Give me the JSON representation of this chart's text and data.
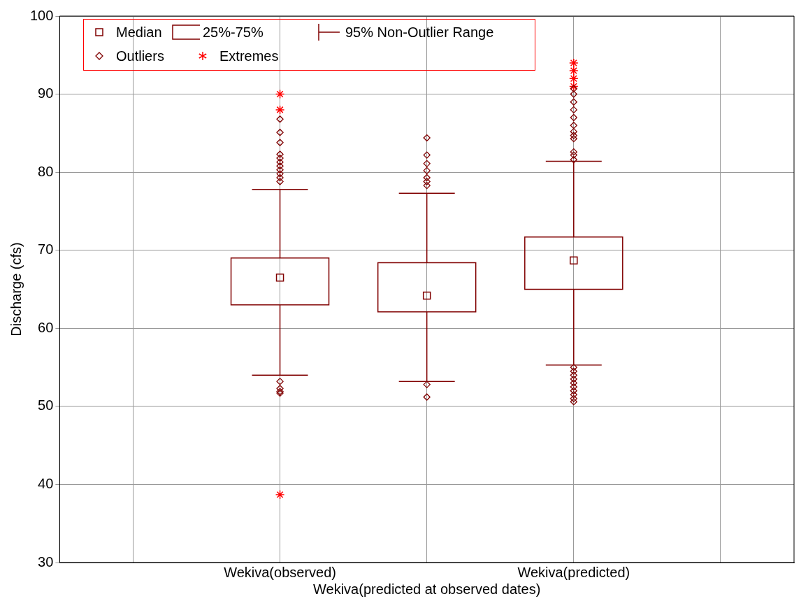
{
  "chart_data": {
    "type": "box",
    "ylabel": "Discharge (cfs)",
    "categories": [
      null,
      "Wekiva(observed)",
      "Wekiva(predicted at observed dates)",
      "Wekiva(predicted)",
      null
    ],
    "series": [
      {
        "color": "#800000",
        "boxes": [
          null,
          {
            "low": 54,
            "q1": 63,
            "median": 66.5,
            "q3": 69,
            "high": 77.8,
            "outliers": [
              53.2,
              52.3,
              51.9,
              51.7,
              78.8,
              79.3,
              79.8,
              80.3,
              80.8,
              81.3,
              81.8,
              82.3,
              83.8,
              85.1,
              86.8
            ]
          },
          {
            "low": 53.2,
            "q1": 62.1,
            "median": 64.2,
            "q3": 68.4,
            "high": 77.3,
            "outliers": [
              52.8,
              51.2,
              78.3,
              78.8,
              79.3,
              80.2,
              81.1,
              82.2,
              84.4
            ]
          },
          {
            "low": 55.3,
            "q1": 65,
            "median": 68.7,
            "q3": 71.7,
            "high": 81.4,
            "outliers": [
              55,
              54.5,
              54,
              53.5,
              53,
              52.5,
              52,
              51.5,
              51,
              50.6,
              81.6,
              82.2,
              82.6,
              84.3,
              84.7,
              85.2,
              86,
              87,
              88,
              89,
              90,
              90.7
            ]
          },
          null
        ]
      },
      {
        "type": "scatter",
        "name": "Extremes",
        "color": "#ff0000",
        "marker": "cross",
        "x": [
          "Wekiva(observed)",
          "Wekiva(observed)",
          "Wekiva(observed)",
          "Wekiva(predicted)",
          "Wekiva(predicted)",
          "Wekiva(predicted)",
          "Wekiva(predicted)"
        ],
        "values": [
          90,
          88,
          38.7,
          91,
          92,
          93,
          94
        ]
      }
    ],
    "annotations": [
      "Median",
      "25%-75%",
      "95% Non-Outlier Range",
      "Outliers"
    ],
    "ylim": [
      30,
      100
    ],
    "yticks": [
      30,
      40,
      50,
      60,
      70,
      80,
      90,
      100
    ],
    "grid": true,
    "legend": "top left"
  }
}
